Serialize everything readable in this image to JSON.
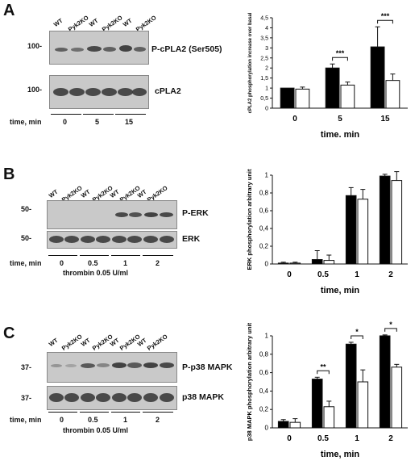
{
  "panels": [
    {
      "letter": "A",
      "lanes": [
        "WT",
        "Pyk2KO",
        "WT",
        "Pyk2KO",
        "WT",
        "Pyk2KO"
      ],
      "blots": [
        {
          "mw": "100-",
          "name": "P-cPLA2 (Ser505)"
        },
        {
          "mw": "100-",
          "name": "cPLA2"
        }
      ],
      "time_label": "time, min",
      "time_points": [
        "0",
        "5",
        "15"
      ],
      "treatment": ""
    },
    {
      "letter": "B",
      "lanes": [
        "WT",
        "Pyk2KO",
        "WT",
        "Pyk2KO",
        "WT",
        "Pyk2KO",
        "WT",
        "Pyk2KO"
      ],
      "blots": [
        {
          "mw": "50-",
          "name": "P-ERK"
        },
        {
          "mw": "50-",
          "name": "ERK"
        }
      ],
      "time_label": "time, min",
      "time_points": [
        "0",
        "0.5",
        "1",
        "2"
      ],
      "treatment": "thrombin 0.05 U/ml"
    },
    {
      "letter": "C",
      "lanes": [
        "WT",
        "Pyk2KO",
        "WT",
        "Pyk2KO",
        "WT",
        "Pyk2KO",
        "WT",
        "Pyk2KO"
      ],
      "blots": [
        {
          "mw": "37-",
          "name": "P-p38 MAPK"
        },
        {
          "mw": "37-",
          "name": "p38 MAPK"
        }
      ],
      "time_label": "time, min",
      "time_points": [
        "0",
        "0.5",
        "1",
        "2"
      ],
      "treatment": "thrombin 0.05 U/ml"
    }
  ],
  "colors": {
    "wt": "#000000",
    "ko": "#ffffff",
    "blot_bg": "#c9c9c9"
  },
  "chart_data": [
    {
      "type": "bar",
      "categories": [
        "0",
        "5",
        "15"
      ],
      "series": [
        {
          "values": [
            1.0,
            2.0,
            3.05
          ],
          "errors": [
            0.0,
            0.2,
            1.0
          ]
        },
        {
          "values": [
            0.95,
            1.15,
            1.38
          ],
          "errors": [
            0.1,
            0.15,
            0.32
          ]
        }
      ],
      "ylabel": "cPLA2 phosphorylation increase over basal",
      "xlabel": "time, min",
      "ylim": [
        0,
        4.5
      ],
      "yticks": [
        "0",
        "0,5",
        "1",
        "1,5",
        "2",
        "2,5",
        "3",
        "3,5",
        "4",
        "4,5"
      ],
      "significance": [
        {
          "category": "5",
          "label": "***"
        },
        {
          "category": "15",
          "label": "***"
        }
      ]
    },
    {
      "type": "bar",
      "categories": [
        "0",
        "0.5",
        "1",
        "2"
      ],
      "series": [
        {
          "values": [
            0.01,
            0.05,
            0.77,
            0.99
          ],
          "errors": [
            0.01,
            0.1,
            0.09,
            0.02
          ]
        },
        {
          "values": [
            0.01,
            0.04,
            0.73,
            0.94
          ],
          "errors": [
            0.01,
            0.06,
            0.11,
            0.1
          ]
        }
      ],
      "ylabel": "ERK phosphorylation arbitrary unit",
      "xlabel": "time, min",
      "ylim": [
        0,
        1
      ],
      "yticks": [
        "0",
        "0,2",
        "0,4",
        "0,6",
        "0,8",
        "1"
      ],
      "significance": []
    },
    {
      "type": "bar",
      "categories": [
        "0",
        "0.5",
        "1",
        "2"
      ],
      "series": [
        {
          "values": [
            0.07,
            0.53,
            0.91,
            1.0
          ],
          "errors": [
            0.02,
            0.02,
            0.02,
            0.01
          ]
        },
        {
          "values": [
            0.06,
            0.23,
            0.5,
            0.66
          ],
          "errors": [
            0.04,
            0.06,
            0.13,
            0.03
          ]
        }
      ],
      "ylabel": "p38 MAPK phosphorylation arbitrary unit",
      "xlabel": "time, min",
      "ylim": [
        0,
        1
      ],
      "yticks": [
        "0",
        "0,2",
        "0,4",
        "0,6",
        "0,8",
        "1"
      ],
      "significance": [
        {
          "category": "0.5",
          "label": "**"
        },
        {
          "category": "1",
          "label": "*"
        },
        {
          "category": "2",
          "label": "*"
        }
      ]
    }
  ]
}
